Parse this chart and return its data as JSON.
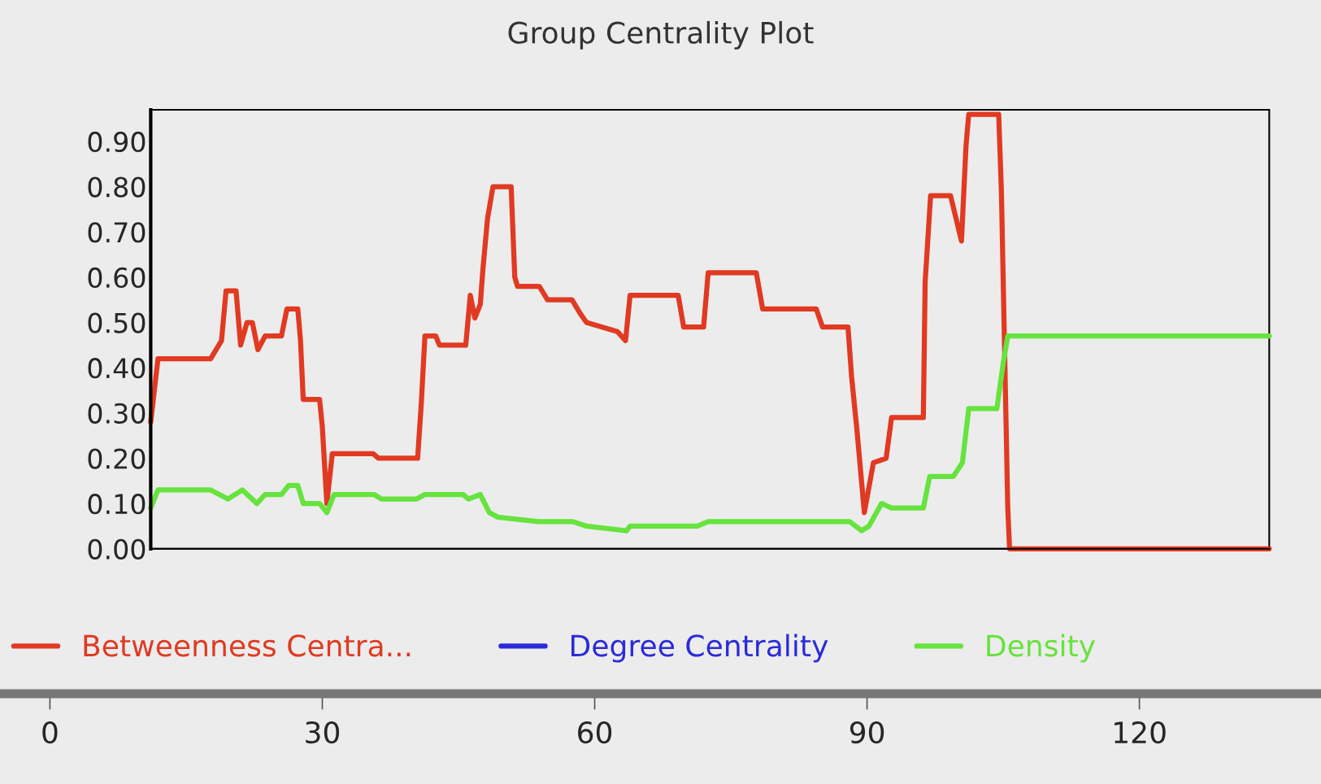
{
  "chart_data": {
    "type": "line",
    "title": "Group Centrality Plot",
    "series": [
      {
        "name": "Betweenness Centra...",
        "color": "#e03a22",
        "x": [
          11.1,
          11.9,
          17.7,
          18.9,
          19.4,
          20.5,
          21.0,
          21.7,
          22.3,
          22.9,
          23.7,
          25.5,
          26.1,
          27.3,
          27.6,
          27.9,
          29.7,
          30.0,
          30.5,
          31.1,
          35.6,
          36.2,
          40.5,
          40.9,
          41.3,
          42.5,
          42.9,
          45.8,
          46.3,
          46.8,
          47.4,
          47.7,
          48.2,
          48.8,
          50.8,
          51.2,
          51.5,
          53.9,
          54.8,
          57.5,
          58.4,
          59.1,
          62.5,
          63.4,
          63.9,
          69.2,
          69.8,
          72.0,
          72.5,
          77.8,
          78.5,
          84.4,
          85.1,
          87.9,
          88.3,
          88.9,
          89.7,
          90.7,
          92.1,
          92.7,
          96.2,
          96.4,
          97.0,
          99.2,
          100.4,
          100.9,
          101.2,
          104.5,
          104.8,
          105.5,
          105.7,
          134.3
        ],
        "values": [
          0.28,
          0.42,
          0.42,
          0.46,
          0.57,
          0.57,
          0.45,
          0.5,
          0.5,
          0.44,
          0.47,
          0.47,
          0.53,
          0.53,
          0.46,
          0.33,
          0.33,
          0.27,
          0.1,
          0.21,
          0.21,
          0.2,
          0.2,
          0.32,
          0.47,
          0.47,
          0.45,
          0.45,
          0.56,
          0.51,
          0.54,
          0.62,
          0.73,
          0.8,
          0.8,
          0.6,
          0.58,
          0.58,
          0.55,
          0.55,
          0.52,
          0.5,
          0.48,
          0.46,
          0.56,
          0.56,
          0.49,
          0.49,
          0.61,
          0.61,
          0.53,
          0.53,
          0.49,
          0.49,
          0.38,
          0.26,
          0.08,
          0.19,
          0.2,
          0.29,
          0.29,
          0.59,
          0.78,
          0.78,
          0.68,
          0.89,
          0.96,
          0.96,
          0.79,
          0.09,
          0.0,
          0.0
        ]
      },
      {
        "name": "Degree Centrality",
        "color": "#2b2bd9"
      },
      {
        "name": "Density",
        "color": "#66e33e",
        "x": [
          11.1,
          11.9,
          17.7,
          19.6,
          21.2,
          22.8,
          23.7,
          25.5,
          26.3,
          27.3,
          27.9,
          29.7,
          30.5,
          31.3,
          35.7,
          36.5,
          40.4,
          41.3,
          45.5,
          46.1,
          47.4,
          48.4,
          49.3,
          53.8,
          55.1,
          57.6,
          59.1,
          63.5,
          63.9,
          71.3,
          72.5,
          88.1,
          89.4,
          90.2,
          91.6,
          92.7,
          96.2,
          96.9,
          99.5,
          100.5,
          101.2,
          104.3,
          105.0,
          105.5,
          134.3
        ],
        "values": [
          0.09,
          0.13,
          0.13,
          0.11,
          0.13,
          0.1,
          0.12,
          0.12,
          0.14,
          0.14,
          0.1,
          0.1,
          0.08,
          0.12,
          0.12,
          0.11,
          0.11,
          0.12,
          0.12,
          0.11,
          0.12,
          0.08,
          0.07,
          0.06,
          0.06,
          0.06,
          0.05,
          0.04,
          0.05,
          0.05,
          0.06,
          0.06,
          0.04,
          0.05,
          0.1,
          0.09,
          0.09,
          0.16,
          0.16,
          0.19,
          0.31,
          0.31,
          0.41,
          0.47,
          0.47
        ]
      }
    ],
    "xlim": [
      -5.5,
      140
    ],
    "xticks": [
      0,
      30,
      60,
      90,
      120
    ],
    "ylim": [
      0,
      0.97
    ],
    "yticks": [
      {
        "value": 0,
        "label": "0.00"
      },
      {
        "value": 0.1,
        "label": "0.10"
      },
      {
        "value": 0.2,
        "label": "0.20"
      },
      {
        "value": 0.3,
        "label": "0.30"
      },
      {
        "value": 0.4,
        "label": "0.40"
      },
      {
        "value": 0.5,
        "label": "0.50"
      },
      {
        "value": 0.6,
        "label": "0.60"
      },
      {
        "value": 0.7,
        "label": "0.70"
      },
      {
        "value": 0.8,
        "label": "0.80"
      },
      {
        "value": 0.9,
        "label": "0.90"
      }
    ],
    "grid": false,
    "legend": "bottom",
    "marker": "none",
    "line_style": "solid"
  }
}
